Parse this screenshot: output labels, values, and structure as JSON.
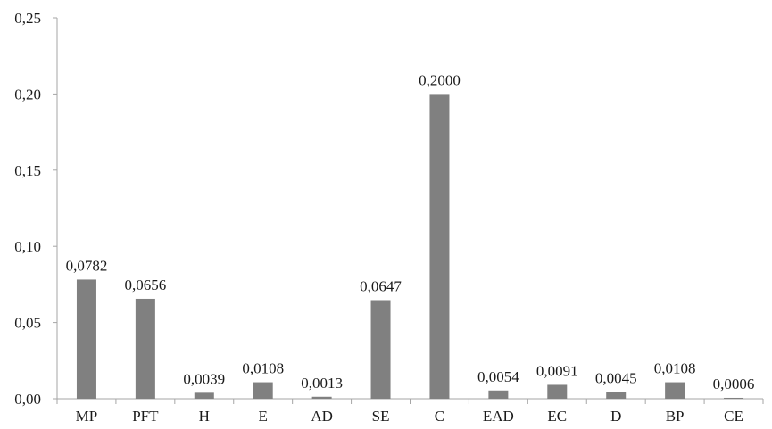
{
  "chart_data": {
    "type": "bar",
    "categories": [
      "MP",
      "PFT",
      "H",
      "E",
      "AD",
      "SE",
      "C",
      "EAD",
      "EC",
      "D",
      "BP",
      "CE"
    ],
    "values": [
      0.0782,
      0.0656,
      0.0039,
      0.0108,
      0.0013,
      0.0647,
      0.2,
      0.0054,
      0.0091,
      0.0045,
      0.0108,
      0.0006
    ],
    "data_labels": [
      "0,0782",
      "0,0656",
      "0,0039",
      "0,0108",
      "0,0013",
      "0,0647",
      "0,2000",
      "0,0054",
      "0,0091",
      "0,0045",
      "0,0108",
      "0,0006"
    ],
    "ylim": [
      0,
      0.25
    ],
    "yticks": [
      0,
      0.05,
      0.1,
      0.15,
      0.2,
      0.25
    ],
    "ytick_labels": [
      "0,00",
      "0,05",
      "0,10",
      "0,15",
      "0,20",
      "0,25"
    ],
    "title": "",
    "xlabel": "",
    "ylabel": "",
    "grid": false,
    "bar_color": "#808080",
    "axis_color": "#a6a6a6"
  }
}
